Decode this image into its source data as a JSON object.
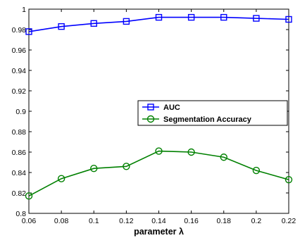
{
  "chart_data": {
    "type": "line",
    "title": "",
    "xlabel": "parameter λ",
    "ylabel": "",
    "x": [
      0.06,
      0.08,
      0.1,
      0.12,
      0.14,
      0.16,
      0.18,
      0.2,
      0.22
    ],
    "xlim": [
      0.06,
      0.22
    ],
    "ylim": [
      0.8,
      1.0
    ],
    "x_ticks": [
      "0.06",
      "0.08",
      "0.1",
      "0.12",
      "0.14",
      "0.16",
      "0.18",
      "0.2",
      "0.22"
    ],
    "y_ticks": [
      "0.8",
      "0.82",
      "0.84",
      "0.86",
      "0.88",
      "0.9",
      "0.92",
      "0.94",
      "0.96",
      "0.98",
      "1"
    ],
    "grid": false,
    "legend_position": "center-right",
    "series": [
      {
        "name": "AUC",
        "color": "#0000ff",
        "marker": "square",
        "values": [
          0.978,
          0.983,
          0.986,
          0.988,
          0.992,
          0.992,
          0.992,
          0.991,
          0.99
        ]
      },
      {
        "name": "Segmentation Accuracy",
        "color": "#008000",
        "marker": "circle",
        "values": [
          0.817,
          0.834,
          0.844,
          0.846,
          0.861,
          0.86,
          0.855,
          0.842,
          0.833
        ]
      }
    ]
  }
}
